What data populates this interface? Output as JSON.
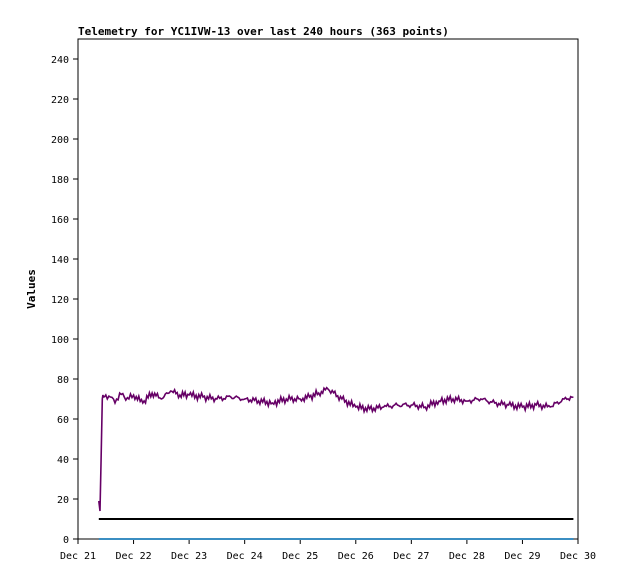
{
  "chart_data": {
    "type": "line",
    "title": "Telemetry for YC1IVW-13 over last 240 hours (363 points)",
    "ylabel": "Values",
    "xlabel": "",
    "ylim": [
      0,
      250
    ],
    "yticks": [
      0,
      20,
      40,
      60,
      80,
      100,
      120,
      140,
      160,
      180,
      200,
      220,
      240
    ],
    "x_domain": [
      "2023-12-21",
      "2023-12-30"
    ],
    "xticks": [
      {
        "date": "2023-12-21",
        "label": "Dec 21"
      },
      {
        "date": "2023-12-22",
        "label": "Dec 22"
      },
      {
        "date": "2023-12-23",
        "label": "Dec 23"
      },
      {
        "date": "2023-12-24",
        "label": "Dec 24"
      },
      {
        "date": "2023-12-25",
        "label": "Dec 25"
      },
      {
        "date": "2023-12-26",
        "label": "Dec 26"
      },
      {
        "date": "2023-12-27",
        "label": "Dec 27"
      },
      {
        "date": "2023-12-28",
        "label": "Dec 28"
      },
      {
        "date": "2023-12-29",
        "label": "Dec 29"
      },
      {
        "date": "2023-12-30",
        "label": "Dec 30"
      }
    ],
    "grid": false,
    "series": [
      {
        "color": "#660066",
        "x": [
          "2023-12-21T09:00",
          "2023-12-21T09:30",
          "2023-12-21T10:00",
          "2023-12-21T10:30",
          "2023-12-21T11:00",
          "2023-12-21T12:00",
          "2023-12-21T14:00",
          "2023-12-21T16:00",
          "2023-12-21T18:00",
          "2023-12-21T20:00",
          "2023-12-21T22:00",
          "2023-12-22T00:00",
          "2023-12-22T04:00",
          "2023-12-22T08:00",
          "2023-12-22T12:00",
          "2023-12-22T16:00",
          "2023-12-22T20:00",
          "2023-12-23T00:00",
          "2023-12-23T06:00",
          "2023-12-23T12:00",
          "2023-12-23T18:00",
          "2023-12-24T00:00",
          "2023-12-24T06:00",
          "2023-12-24T12:00",
          "2023-12-24T18:00",
          "2023-12-25T00:00",
          "2023-12-25T04:00",
          "2023-12-25T08:00",
          "2023-12-25T12:00",
          "2023-12-25T18:00",
          "2023-12-26T00:00",
          "2023-12-26T06:00",
          "2023-12-26T12:00",
          "2023-12-26T18:00",
          "2023-12-27T00:00",
          "2023-12-27T06:00",
          "2023-12-27T12:00",
          "2023-12-27T18:00",
          "2023-12-28T00:00",
          "2023-12-28T06:00",
          "2023-12-28T12:00",
          "2023-12-28T18:00",
          "2023-12-29T00:00",
          "2023-12-29T06:00",
          "2023-12-29T12:00",
          "2023-12-29T18:00",
          "2023-12-29T22:00"
        ],
        "y": [
          19,
          14,
          40,
          70,
          71,
          72,
          71,
          68,
          73,
          71,
          70,
          72,
          68,
          73,
          70,
          74,
          72,
          72,
          71,
          70,
          71,
          70,
          69,
          68,
          70,
          70,
          71,
          73,
          75,
          70,
          66,
          65,
          66,
          67,
          67,
          66,
          69,
          70,
          69,
          70,
          68,
          67,
          66,
          67,
          66,
          70,
          71
        ]
      },
      {
        "color": "#000000",
        "x": [
          "2023-12-21T09:00",
          "2023-12-29T22:00"
        ],
        "y": [
          10,
          10
        ]
      },
      {
        "color": "#3b8ec2",
        "x": [
          "2023-12-21T09:00",
          "2023-12-29T22:00"
        ],
        "y": [
          0,
          0
        ]
      }
    ]
  }
}
